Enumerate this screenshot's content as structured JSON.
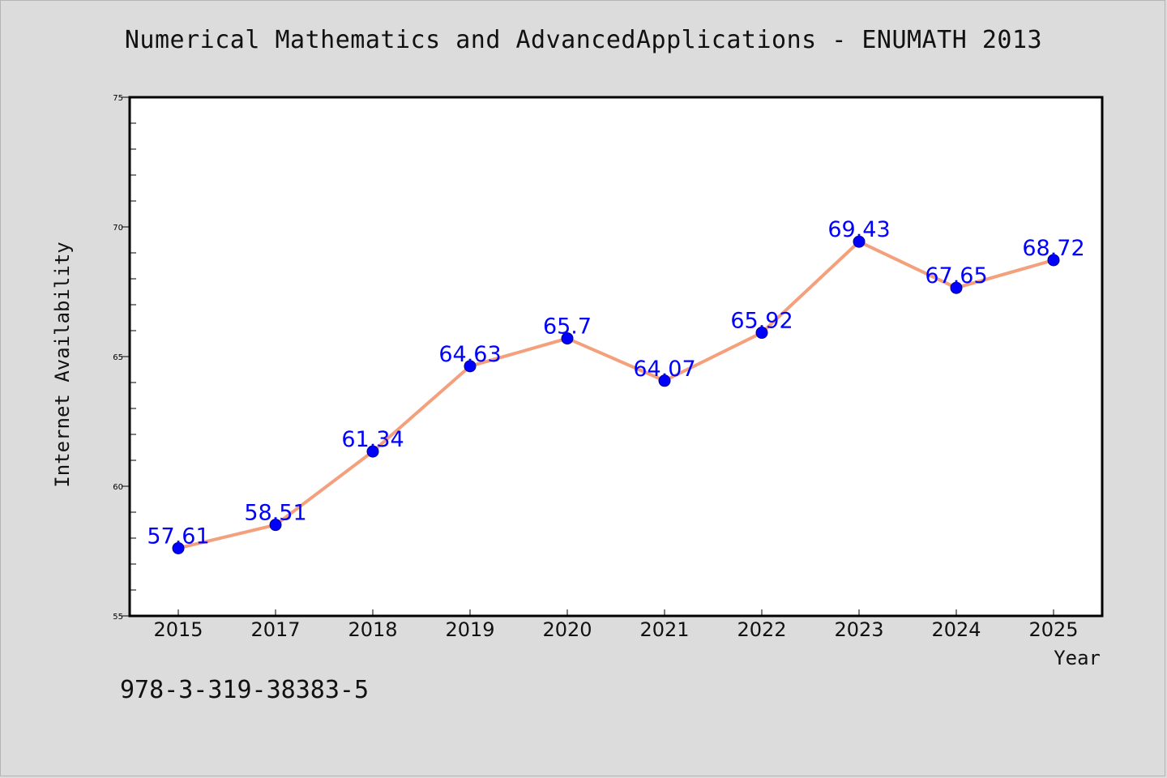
{
  "title": "Numerical Mathematics and AdvancedApplications - ENUMATH 2013",
  "footer_text": "978-3-319-38383-5",
  "colors": {
    "background": "#dcdcdc",
    "plot_area": "#ffffff",
    "line": "#f4a07c",
    "marker": "#0000ff",
    "data_label": "#0000ff",
    "axis": "#000000"
  },
  "chart_data": {
    "type": "line",
    "title": "Numerical Mathematics and AdvancedApplications - ENUMATH 2013",
    "xlabel": "Year",
    "ylabel": "Internet Availability",
    "categories": [
      "2015",
      "2017",
      "2018",
      "2019",
      "2020",
      "2021",
      "2022",
      "2023",
      "2024",
      "2025"
    ],
    "series": [
      {
        "values": [
          57.61,
          58.51,
          61.34,
          64.63,
          65.7,
          64.07,
          65.92,
          69.43,
          67.65,
          68.72
        ],
        "data_labels": [
          "57.61",
          "58.51",
          "61.34",
          "64.63",
          "65.7",
          "64.07",
          "65.92",
          "69.43",
          "67.65",
          "68.72"
        ]
      }
    ],
    "ylim": [
      55,
      75
    ],
    "yticks": [
      55,
      60,
      65,
      70,
      75
    ],
    "ytick_labels": [
      "55",
      "60",
      "65",
      "70",
      "75"
    ],
    "grid": false,
    "legend": "none"
  }
}
